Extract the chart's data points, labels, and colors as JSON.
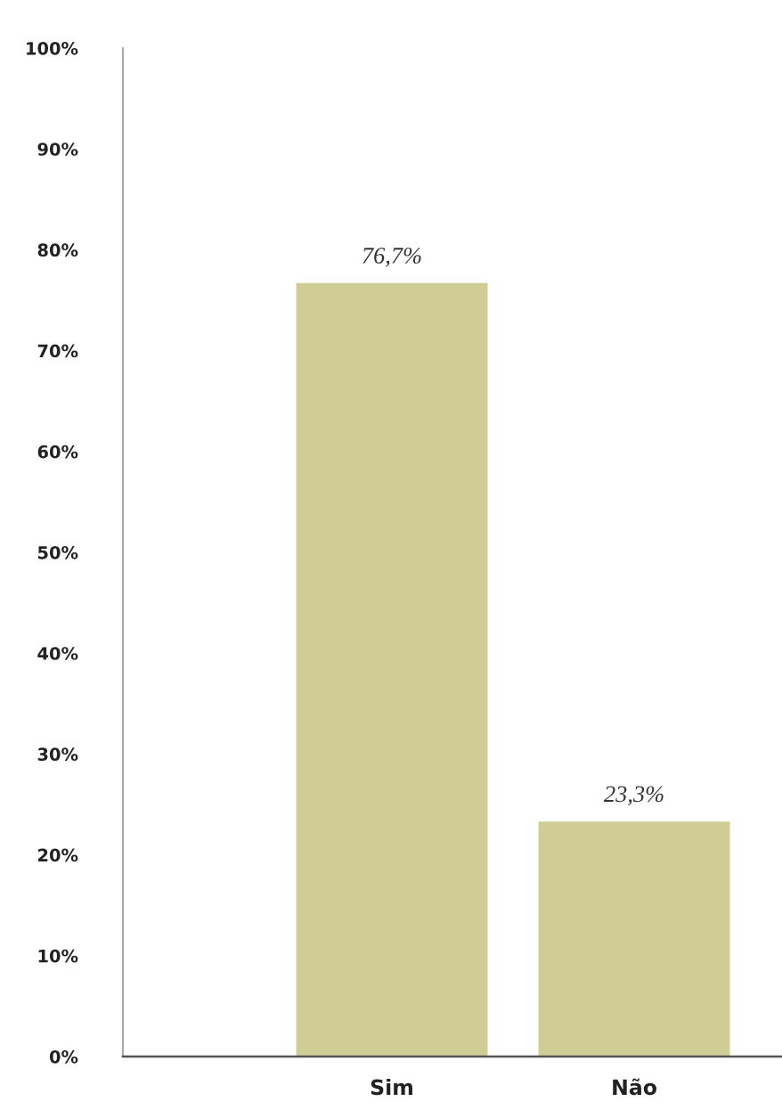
{
  "chart_data": {
    "type": "bar",
    "categories": [
      "Sim",
      "Não"
    ],
    "values": [
      76.7,
      23.3
    ],
    "color": "#cfcc96",
    "value_labels": [
      "76,7%",
      "23,3%"
    ],
    "ylim": [
      0,
      100
    ],
    "yticks": [
      {
        "value": 0,
        "label": "0%"
      },
      {
        "value": 10,
        "label": "10%"
      },
      {
        "value": 20,
        "label": "20%"
      },
      {
        "value": 30,
        "label": "30%"
      },
      {
        "value": 40,
        "label": "40%"
      },
      {
        "value": 50,
        "label": "50%"
      },
      {
        "value": 60,
        "label": "60%"
      },
      {
        "value": 70,
        "label": "70%"
      },
      {
        "value": 80,
        "label": "80%"
      },
      {
        "value": 90,
        "label": "90%"
      },
      {
        "value": 100,
        "label": "100%"
      }
    ]
  }
}
